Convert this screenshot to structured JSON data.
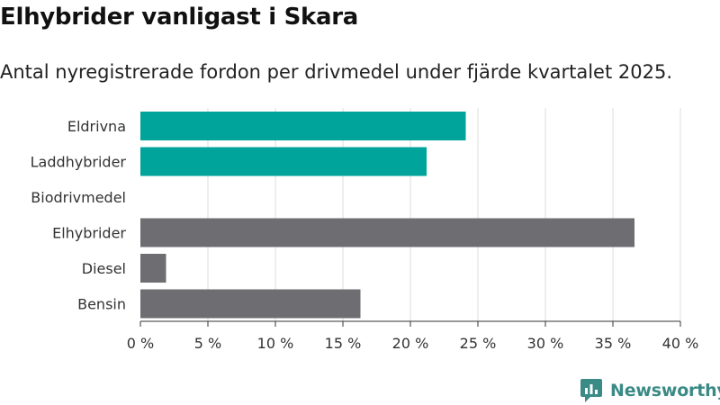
{
  "title": "Elhybrider vanligast i Skara",
  "subtitle": "Antal nyregistrerade fordon per drivmedel under fjärde kvartalet 2025.",
  "brand": {
    "name": "Newsworthy",
    "color": "#3a8a86",
    "icon": "newsworthy-logo-icon"
  },
  "chart_data": {
    "type": "bar",
    "orientation": "horizontal",
    "categories": [
      "Eldrivna",
      "Laddhybrider",
      "Biodrivmedel",
      "Elhybrider",
      "Diesel",
      "Bensin"
    ],
    "values": [
      24.1,
      21.2,
      0,
      36.6,
      1.9,
      16.3
    ],
    "colors": [
      "#00a49a",
      "#00a49a",
      "#00a49a",
      "#6d6d72",
      "#6d6d72",
      "#6d6d72"
    ],
    "xlim": [
      0,
      40
    ],
    "xticks": [
      0,
      5,
      10,
      15,
      20,
      25,
      30,
      35,
      40
    ],
    "xtick_labels": [
      "0 %",
      "5 %",
      "10 %",
      "15 %",
      "20 %",
      "25 %",
      "30 %",
      "35 %",
      "40 %"
    ],
    "xlabel": "",
    "ylabel": "",
    "grid": true
  }
}
